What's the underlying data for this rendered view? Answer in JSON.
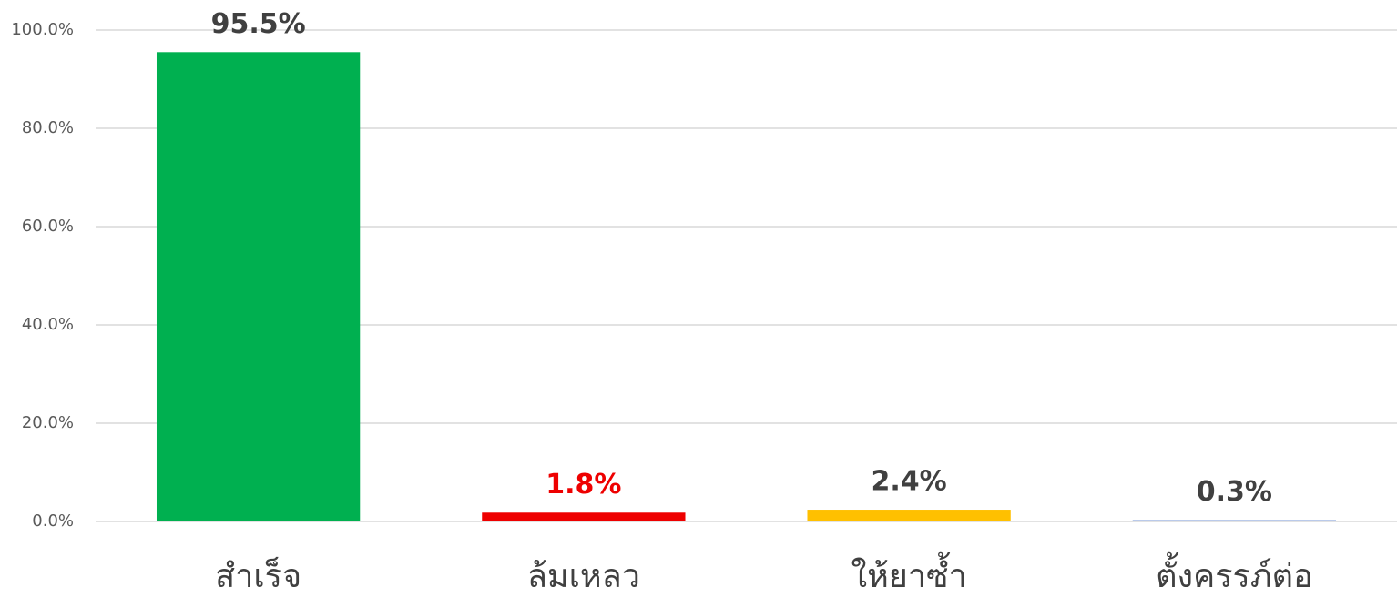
{
  "chart_data": {
    "type": "bar",
    "categories": [
      "สำเร็จ",
      "ล้มเหลว",
      "ให้ยาซ้ำ",
      "ตั้งครรภ์ต่อ"
    ],
    "values": [
      95.5,
      1.8,
      2.4,
      0.3
    ],
    "value_labels": [
      "95.5%",
      "1.8%",
      "2.4%",
      "0.3%"
    ],
    "colors": [
      "#00b050",
      "#ee0000",
      "#ffc000",
      "#8faadc"
    ],
    "label_colors": [
      "#404040",
      "#ee0000",
      "#404040",
      "#404040"
    ],
    "ylim": [
      0,
      100
    ],
    "yticks": [
      {
        "value": 0,
        "label": "0.0%"
      },
      {
        "value": 20,
        "label": "20.0%"
      },
      {
        "value": 40,
        "label": "40.0%"
      },
      {
        "value": 60,
        "label": "60.0%"
      },
      {
        "value": 80,
        "label": "80.0%"
      },
      {
        "value": 100,
        "label": "100.0%"
      }
    ],
    "grid": true
  }
}
